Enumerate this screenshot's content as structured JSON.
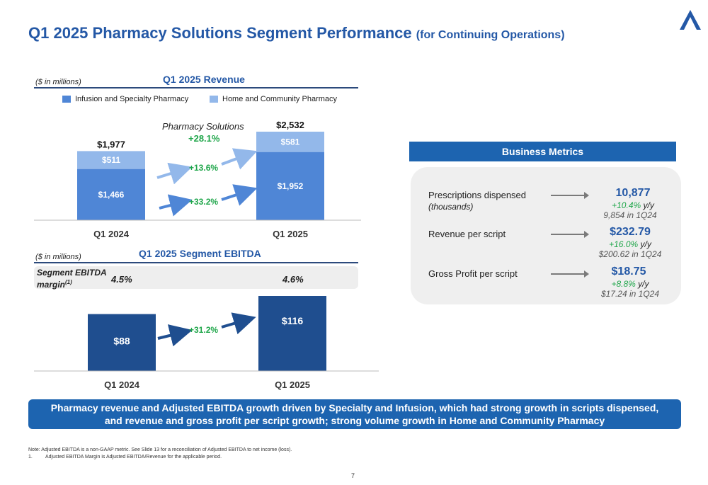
{
  "slide": {
    "title": "Q1 2025 Pharmacy Solutions Segment Performance",
    "title_suffix": "(for Continuing Operations)",
    "page_number": "7"
  },
  "colors": {
    "title_blue": "#2458a6",
    "infusion_specialty": "#4f86d6",
    "home_community": "#93b8ea",
    "ebitda_bar": "#1f4e8f",
    "growth_green": "#1fa64a",
    "banner_blue": "#1d64b0"
  },
  "revenue_section": {
    "unit_note": "($ in millions)",
    "title": "Q1 2025 Revenue",
    "pharmacy_solutions_label": "Pharmacy Solutions",
    "pharmacy_solutions_growth": "+28.1%"
  },
  "ebitda_section": {
    "unit_note": "($ in millions)",
    "title": "Q1 2025 Segment EBITDA",
    "margin_label_line1": "Segment EBITDA",
    "margin_label_line2": "margin",
    "margin_footnote_marker": "(1)"
  },
  "chart_data": [
    {
      "type": "bar",
      "stacked": true,
      "title": "Q1 2025 Revenue",
      "categories": [
        "Q1 2024",
        "Q1 2025"
      ],
      "series": [
        {
          "name": "Infusion and Specialty Pharmacy",
          "values": [
            1466,
            1952
          ],
          "labels": [
            "$1,466",
            "$1,952"
          ],
          "growth": "+33.2%"
        },
        {
          "name": "Home and Community Pharmacy",
          "values": [
            511,
            581
          ],
          "labels": [
            "$511",
            "$581"
          ],
          "growth": "+13.6%"
        }
      ],
      "totals": [
        1977,
        2532
      ],
      "total_labels": [
        "$1,977",
        "$2,532"
      ],
      "ylim": [
        0,
        2600
      ],
      "legend": "top"
    },
    {
      "type": "bar",
      "title": "Q1 2025 Segment EBITDA",
      "categories": [
        "Q1 2024",
        "Q1 2025"
      ],
      "values": [
        88,
        116
      ],
      "labels": [
        "$88",
        "$116"
      ],
      "growth": "+31.2%",
      "margins": [
        "4.5%",
        "4.6%"
      ],
      "ylim": [
        0,
        125
      ]
    }
  ],
  "business_metrics": {
    "header": "Business Metrics",
    "items": [
      {
        "label": "Prescriptions dispensed",
        "sublabel": "(thousands)",
        "value": "10,877",
        "growth": "+10.4%",
        "growth_suffix": "y/y",
        "prior": "9,854 in 1Q24"
      },
      {
        "label": "Revenue per script",
        "sublabel": "",
        "value": "$232.79",
        "growth": "+16.0%",
        "growth_suffix": "y/y",
        "prior": "$200.62 in 1Q24"
      },
      {
        "label": "Gross Profit per script",
        "sublabel": "",
        "value": "$18.75",
        "growth": "+8.8%",
        "growth_suffix": "y/y",
        "prior": "$17.24 in 1Q24"
      }
    ]
  },
  "banner": {
    "line1": "Pharmacy revenue and Adjusted EBITDA growth driven by Specialty and Infusion, which had strong growth in scripts dispensed,",
    "line2": "and revenue and gross profit per script growth; strong volume growth in Home and Community Pharmacy"
  },
  "footnotes": {
    "note": "Note: Adjusted EBITDA is a non-GAAP metric. See Slide 13 for a reconciliation of Adjusted EBITDA to net income (loss).",
    "item1_number": "1.",
    "item1_text": "Adjusted EBITDA Margin is Adjusted EBITDA/Revenue for the applicable period."
  }
}
